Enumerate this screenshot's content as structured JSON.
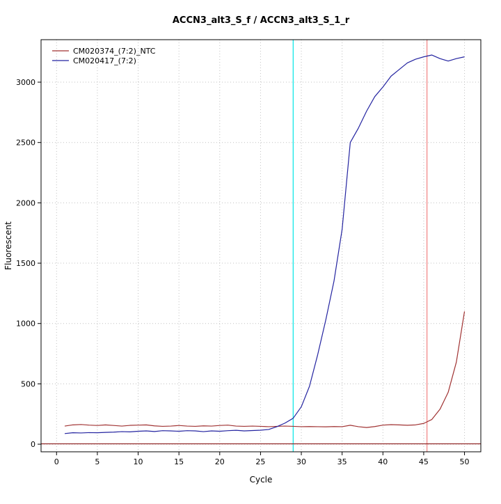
{
  "chart_data": {
    "type": "line",
    "title": "ACCN3_alt3_S_f / ACCN3_alt3_S_1_r",
    "xlabel": "Cycle",
    "ylabel": "Fluorescent",
    "xlim": [
      -1.9,
      52.0
    ],
    "ylim": [
      -63,
      3352
    ],
    "xticks": [
      0,
      5,
      10,
      15,
      20,
      25,
      30,
      35,
      40,
      45,
      50
    ],
    "yticks": [
      0,
      500,
      1000,
      1500,
      2000,
      2500,
      3000
    ],
    "grid": true,
    "colors": {
      "grid": "#c0c0c0",
      "box": "#000000",
      "crossing_line": "#00e5e5",
      "cutoff_line": "#f08080",
      "baseline_line": "#8b1a1a"
    },
    "x": [
      1,
      2,
      3,
      4,
      5,
      6,
      7,
      8,
      9,
      10,
      11,
      12,
      13,
      14,
      15,
      16,
      17,
      18,
      19,
      20,
      21,
      22,
      23,
      24,
      25,
      26,
      27,
      28,
      29,
      30,
      31,
      32,
      33,
      34,
      35,
      36,
      37,
      38,
      39,
      40,
      41,
      42,
      43,
      44,
      45,
      46,
      47,
      48,
      49,
      50
    ],
    "series": [
      {
        "name": "CM020374_(7:2)_NTC",
        "color": "#a03232",
        "values": [
          150,
          160,
          163,
          158,
          155,
          160,
          155,
          150,
          156,
          158,
          160,
          152,
          148,
          150,
          155,
          150,
          148,
          152,
          150,
          155,
          158,
          150,
          148,
          150,
          148,
          145,
          148,
          150,
          148,
          145,
          146,
          145,
          144,
          146,
          145,
          157,
          145,
          138,
          146,
          158,
          162,
          160,
          157,
          160,
          172,
          205,
          290,
          430,
          680,
          1100
        ]
      },
      {
        "name": "CM020417_(7:2)",
        "color": "#2323a0",
        "values": [
          88,
          95,
          93,
          96,
          95,
          98,
          100,
          104,
          102,
          107,
          110,
          105,
          112,
          110,
          107,
          112,
          110,
          104,
          110,
          107,
          112,
          115,
          110,
          113,
          116,
          122,
          145,
          175,
          215,
          310,
          480,
          740,
          1030,
          1350,
          1780,
          2500,
          2620,
          2760,
          2880,
          2960,
          3050,
          3105,
          3160,
          3190,
          3210,
          3225,
          3195,
          3175,
          3195,
          3210
        ]
      }
    ],
    "vlines": [
      {
        "x": 29.0,
        "color_key": "crossing_line"
      },
      {
        "x": 45.4,
        "color_key": "cutoff_line"
      }
    ],
    "hlines": [
      {
        "y": 3,
        "color_key": "baseline_line"
      }
    ],
    "legend": {
      "position": "top-left",
      "entries": [
        {
          "label": "CM020374_(7:2)_NTC",
          "color": "#a03232"
        },
        {
          "label": "CM020417_(7:2)",
          "color": "#2323a0"
        }
      ]
    }
  }
}
